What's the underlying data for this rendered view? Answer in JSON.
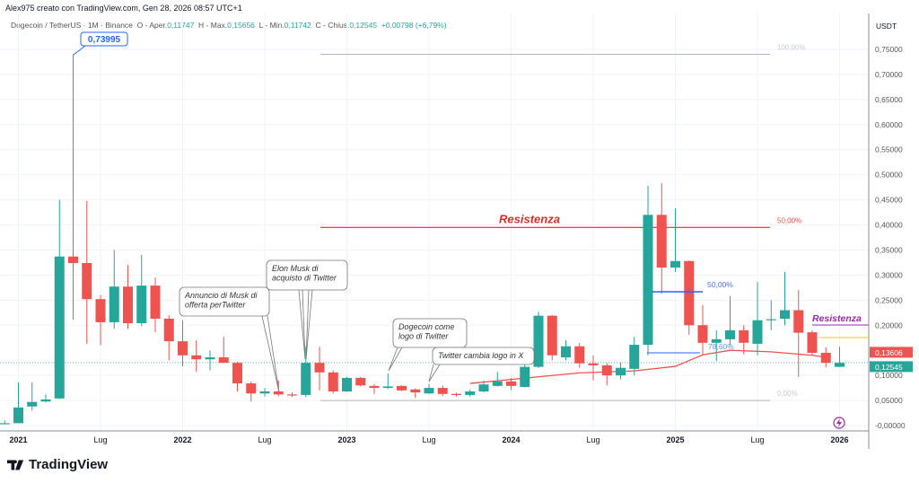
{
  "header": {
    "author_line": "Alex975 creato con TradingView.com, Gen 28, 2026 08:57 UTC+1"
  },
  "legend": {
    "symbol": "Dogecoin / TetherUS · 1M · Binance",
    "o_label": "O - Aper.",
    "o": "0,11747",
    "h_label": "H - Max.",
    "h": "0,15656",
    "l_label": "L - Min.",
    "l": "0,11742",
    "c_label": "C - Chius.",
    "c": "0,12545",
    "change": "+0,00798 (+6,79%)"
  },
  "price_axis": {
    "currency": "USDT",
    "ticks": [
      "0,75000",
      "0,70000",
      "0,65000",
      "0,60000",
      "0,55000",
      "0,50000",
      "0,45000",
      "0,40000",
      "0,35000",
      "0,30000",
      "0,25000",
      "0,20000",
      "0,10000",
      "0,05000",
      "-0,00000"
    ],
    "tick_values": [
      0.75,
      0.7,
      0.65,
      0.6,
      0.55,
      0.5,
      0.45,
      0.4,
      0.35,
      0.3,
      0.25,
      0.2,
      0.1,
      0.05,
      0
    ],
    "ma_label": "0,13606",
    "ma_value": 0.13606,
    "last_label": "0,12545",
    "last_value": 0.12545
  },
  "time_axis": {
    "labels": [
      "2021",
      "Lug",
      "2022",
      "Lug",
      "2023",
      "Lug",
      "2024",
      "Lug",
      "2025",
      "Lug",
      "2026"
    ],
    "label_month_index": [
      0,
      6,
      12,
      18,
      24,
      30,
      36,
      42,
      48,
      54,
      60
    ]
  },
  "colors": {
    "up": "#26a69a",
    "down": "#ef5350",
    "resistance": "#d32f2f",
    "fib_blue": "#2962ff",
    "purple": "#9c27b0",
    "yellow": "#f9c62b",
    "ma": "#ef5350"
  },
  "candles_start": "Dic 2020",
  "candles": [
    [
      0.0046,
      0.0105,
      0.0044,
      0.0047
    ],
    [
      0.0047,
      0.086,
      0.0047,
      0.036
    ],
    [
      0.038,
      0.086,
      0.03,
      0.047
    ],
    [
      0.048,
      0.062,
      0.046,
      0.052
    ],
    [
      0.054,
      0.45,
      0.053,
      0.337
    ],
    [
      0.337,
      0.74,
      0.211,
      0.324
    ],
    [
      0.324,
      0.448,
      0.163,
      0.252
    ],
    [
      0.252,
      0.26,
      0.16,
      0.206
    ],
    [
      0.206,
      0.35,
      0.193,
      0.277
    ],
    [
      0.277,
      0.32,
      0.193,
      0.204
    ],
    [
      0.204,
      0.34,
      0.198,
      0.279
    ],
    [
      0.279,
      0.295,
      0.186,
      0.213
    ],
    [
      0.213,
      0.22,
      0.13,
      0.168
    ],
    [
      0.168,
      0.21,
      0.118,
      0.14
    ],
    [
      0.14,
      0.17,
      0.107,
      0.132
    ],
    [
      0.132,
      0.15,
      0.11,
      0.136
    ],
    [
      0.136,
      0.177,
      0.125,
      0.125
    ],
    [
      0.125,
      0.127,
      0.068,
      0.084
    ],
    [
      0.084,
      0.088,
      0.048,
      0.064
    ],
    [
      0.064,
      0.075,
      0.058,
      0.068
    ],
    [
      0.068,
      0.09,
      0.058,
      0.062
    ],
    [
      0.062,
      0.066,
      0.057,
      0.061
    ],
    [
      0.061,
      0.157,
      0.057,
      0.125
    ],
    [
      0.125,
      0.157,
      0.07,
      0.106
    ],
    [
      0.106,
      0.11,
      0.064,
      0.068
    ],
    [
      0.068,
      0.097,
      0.067,
      0.095
    ],
    [
      0.095,
      0.097,
      0.078,
      0.08
    ],
    [
      0.079,
      0.083,
      0.063,
      0.075
    ],
    [
      0.075,
      0.104,
      0.073,
      0.078
    ],
    [
      0.079,
      0.08,
      0.069,
      0.07
    ],
    [
      0.072,
      0.074,
      0.055,
      0.066
    ],
    [
      0.064,
      0.083,
      0.063,
      0.075
    ],
    [
      0.075,
      0.08,
      0.059,
      0.063
    ],
    [
      0.063,
      0.065,
      0.058,
      0.062
    ],
    [
      0.061,
      0.072,
      0.057,
      0.068
    ],
    [
      0.068,
      0.09,
      0.066,
      0.082
    ],
    [
      0.079,
      0.107,
      0.078,
      0.088
    ],
    [
      0.088,
      0.095,
      0.071,
      0.079
    ],
    [
      0.077,
      0.133,
      0.076,
      0.117
    ],
    [
      0.117,
      0.227,
      0.115,
      0.219
    ],
    [
      0.219,
      0.22,
      0.13,
      0.14
    ],
    [
      0.136,
      0.17,
      0.13,
      0.158
    ],
    [
      0.158,
      0.165,
      0.115,
      0.124
    ],
    [
      0.124,
      0.14,
      0.09,
      0.12
    ],
    [
      0.12,
      0.124,
      0.08,
      0.1
    ],
    [
      0.1,
      0.126,
      0.092,
      0.115
    ],
    [
      0.113,
      0.177,
      0.1,
      0.161
    ],
    [
      0.161,
      0.478,
      0.14,
      0.42
    ],
    [
      0.42,
      0.483,
      0.263,
      0.315
    ],
    [
      0.315,
      0.433,
      0.306,
      0.328
    ],
    [
      0.328,
      0.329,
      0.181,
      0.2
    ],
    [
      0.2,
      0.24,
      0.14,
      0.165
    ],
    [
      0.165,
      0.19,
      0.129,
      0.172
    ],
    [
      0.172,
      0.258,
      0.16,
      0.19
    ],
    [
      0.19,
      0.2,
      0.142,
      0.165
    ],
    [
      0.163,
      0.286,
      0.14,
      0.21
    ],
    [
      0.21,
      0.25,
      0.19,
      0.212
    ],
    [
      0.213,
      0.306,
      0.2,
      0.23
    ],
    [
      0.23,
      0.27,
      0.097,
      0.185
    ],
    [
      0.186,
      0.19,
      0.14,
      0.145
    ],
    [
      0.145,
      0.156,
      0.116,
      0.125
    ],
    [
      0.117,
      0.157,
      0.117,
      0.125
    ]
  ],
  "ma_line": [
    [
      34,
      0.084
    ],
    [
      42,
      0.105
    ],
    [
      46,
      0.109
    ],
    [
      49,
      0.118
    ],
    [
      51,
      0.141
    ],
    [
      53,
      0.15
    ],
    [
      56,
      0.147
    ],
    [
      59,
      0.14
    ],
    [
      60,
      0.136
    ]
  ],
  "annotations": {
    "ath_callout": "0,73995",
    "fib_100": "100,00%",
    "fib_50": "50,00%",
    "fib_0": "0,00%",
    "resistance_label": "Resistenza",
    "blue_50": "50,00%",
    "blue_786": "78,60%",
    "resistance_label_2": "Resistenza",
    "note_musk_offer": [
      "Annuncio di Musk di",
      "offerta perTwitter"
    ],
    "note_musk_buy": [
      "Elon Musk di",
      "acquisto di Twitter"
    ],
    "note_doge_logo": [
      "Dogecoin come",
      "logo di Twitter"
    ],
    "note_x_logo": "Twitter cambia logo in X"
  },
  "footer": {
    "brand": "TradingView"
  }
}
